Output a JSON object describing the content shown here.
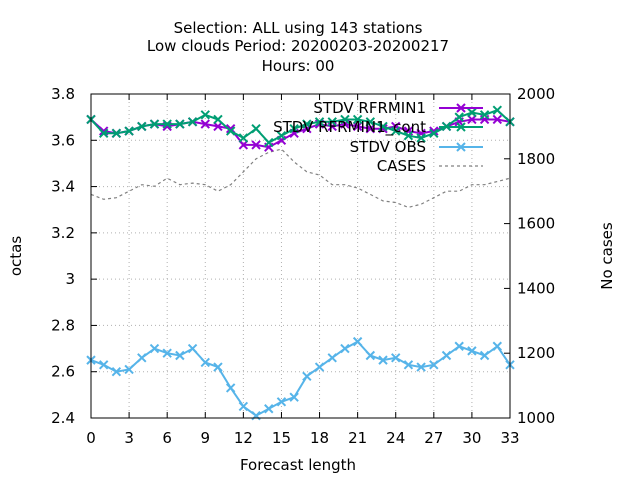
{
  "chart_data": {
    "type": "line",
    "title_lines": [
      "Selection: ALL using   143 stations",
      "Low clouds   Period: 20200203-20200217",
      "Hours:  00"
    ],
    "xlabel": "Forecast length",
    "ylabel": "octas",
    "y2label": "No cases",
    "xlim": [
      0,
      33
    ],
    "ylim": [
      2.4,
      3.8
    ],
    "y2lim": [
      1000,
      2000
    ],
    "x_ticks": [
      0,
      3,
      6,
      9,
      12,
      15,
      18,
      21,
      24,
      27,
      30,
      33
    ],
    "y_ticks": [
      2.4,
      2.6,
      2.8,
      3,
      3.2,
      3.4,
      3.6,
      3.8
    ],
    "y_tick_labels": [
      "2.4",
      "2.6",
      "2.8",
      "3",
      "3.2",
      "3.4",
      "3.6",
      "3.8"
    ],
    "y2_ticks": [
      1000,
      1200,
      1400,
      1600,
      1800,
      2000
    ],
    "grid": true,
    "legend_position": "top-right",
    "x": [
      0,
      1,
      2,
      3,
      4,
      5,
      6,
      7,
      8,
      9,
      10,
      11,
      12,
      13,
      14,
      15,
      16,
      17,
      18,
      19,
      20,
      21,
      22,
      23,
      24,
      25,
      26,
      27,
      28,
      29,
      30,
      31,
      32,
      33
    ],
    "series": [
      {
        "name": "STDV RFRMIN1",
        "color": "#9400d3",
        "marker": "x",
        "axis": "y1",
        "values": [
          3.69,
          3.64,
          3.63,
          3.64,
          3.66,
          3.67,
          3.66,
          3.67,
          3.68,
          3.67,
          3.66,
          3.65,
          3.58,
          3.58,
          3.57,
          3.6,
          3.63,
          3.65,
          3.67,
          3.66,
          3.67,
          3.66,
          3.65,
          3.65,
          3.66,
          3.64,
          3.63,
          3.64,
          3.66,
          3.68,
          3.69,
          3.69,
          3.69,
          3.68
        ]
      },
      {
        "name": "STDV RFRMIN1_cont",
        "color": "#009e73",
        "marker": "x",
        "axis": "y1",
        "values": [
          3.69,
          3.63,
          3.63,
          3.64,
          3.66,
          3.67,
          3.67,
          3.67,
          3.68,
          3.71,
          3.69,
          3.64,
          3.61,
          3.65,
          3.59,
          3.62,
          3.65,
          3.67,
          3.68,
          3.68,
          3.69,
          3.69,
          3.68,
          3.66,
          3.64,
          3.62,
          3.61,
          3.63,
          3.66,
          3.7,
          3.72,
          3.71,
          3.73,
          3.68
        ]
      },
      {
        "name": "STDV OBS",
        "color": "#56b4e9",
        "marker": "x",
        "axis": "y1",
        "values": [
          2.65,
          2.63,
          2.6,
          2.61,
          2.66,
          2.7,
          2.68,
          2.67,
          2.7,
          2.64,
          2.62,
          2.53,
          2.45,
          2.41,
          2.44,
          2.47,
          2.49,
          2.58,
          2.62,
          2.66,
          2.7,
          2.73,
          2.67,
          2.65,
          2.66,
          2.63,
          2.62,
          2.63,
          2.67,
          2.71,
          2.69,
          2.67,
          2.71,
          2.63
        ]
      },
      {
        "name": "CASES",
        "color": "#808080",
        "marker": "none",
        "dash": true,
        "axis": "y2",
        "values": [
          1690,
          1675,
          1680,
          1700,
          1720,
          1715,
          1740,
          1720,
          1725,
          1720,
          1700,
          1720,
          1760,
          1800,
          1820,
          1830,
          1790,
          1760,
          1750,
          1720,
          1720,
          1710,
          1690,
          1670,
          1665,
          1650,
          1660,
          1680,
          1700,
          1700,
          1720,
          1720,
          1730,
          1740
        ]
      }
    ]
  }
}
